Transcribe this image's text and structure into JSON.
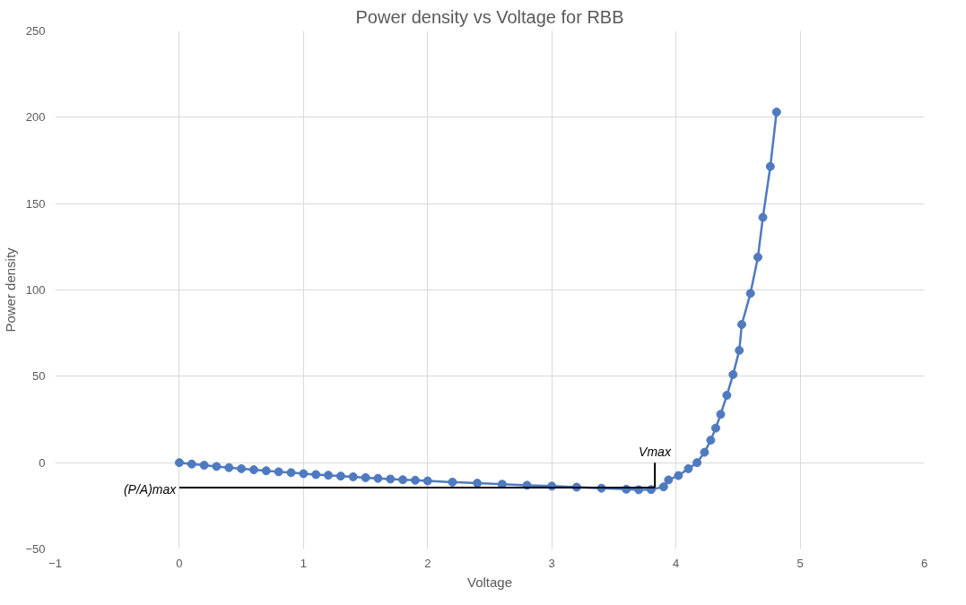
{
  "chart_data": {
    "type": "line",
    "title": "Power density vs Voltage for RBB",
    "xlabel": "Voltage",
    "ylabel": "Power density",
    "xlim": [
      -1,
      6
    ],
    "xticks": [
      -1,
      0,
      1,
      2,
      3,
      4,
      5,
      6
    ],
    "ylim": [
      -50,
      250
    ],
    "yticks": [
      -50,
      0,
      50,
      100,
      150,
      200,
      250
    ],
    "grid": true,
    "marker": "circle",
    "line_style": "solid",
    "series": [
      {
        "color": "#4f7ac0",
        "x": [
          0,
          0.1,
          0.2,
          0.3,
          0.4,
          0.5,
          0.6,
          0.7,
          0.8,
          0.9,
          1.0,
          1.1,
          1.2,
          1.3,
          1.4,
          1.5,
          1.6,
          1.7,
          1.8,
          1.9,
          2.0,
          2.2,
          2.4,
          2.6,
          2.8,
          3.0,
          3.2,
          3.4,
          3.6,
          3.7,
          3.8,
          3.9,
          3.94,
          4.02,
          4.1,
          4.17,
          4.23,
          4.28,
          4.32,
          4.36,
          4.41,
          4.46,
          4.51,
          4.53,
          4.6,
          4.66,
          4.7,
          4.76,
          4.81
        ],
        "values": [
          0,
          -0.8,
          -1.5,
          -2.2,
          -2.9,
          -3.5,
          -4.1,
          -4.7,
          -5.3,
          -5.8,
          -6.4,
          -6.9,
          -7.3,
          -7.8,
          -8.2,
          -8.7,
          -9.1,
          -9.5,
          -9.9,
          -10.2,
          -10.6,
          -11.3,
          -11.9,
          -12.5,
          -13.1,
          -13.6,
          -14.2,
          -14.8,
          -15.4,
          -15.7,
          -15.6,
          -14,
          -10,
          -7.5,
          -3.5,
          0,
          6,
          13,
          20,
          28,
          39,
          51,
          65,
          80,
          98,
          119,
          142,
          171.5,
          203
        ]
      },
      {
        "type": "line",
        "color": "#000000",
        "marker": "none",
        "x": [
          0,
          3.83
        ],
        "values": [
          -14.5,
          -14.5
        ]
      },
      {
        "type": "line",
        "color": "#000000",
        "marker": "none",
        "x": [
          3.83,
          3.83
        ],
        "values": [
          -14.5,
          0
        ]
      }
    ],
    "annotations": [
      {
        "text": "Vmax",
        "x": 3.83,
        "y": 0
      },
      {
        "text": "(P/A)max",
        "x": 0,
        "y": -14.5
      }
    ]
  }
}
